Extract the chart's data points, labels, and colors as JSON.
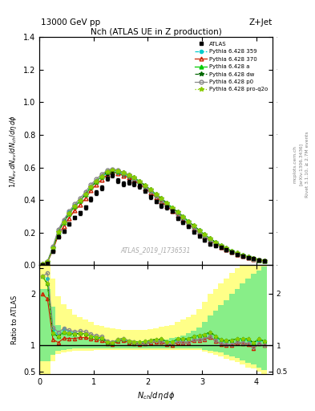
{
  "title_top_left": "13000 GeV pp",
  "title_top_right": "Z+Jet",
  "plot_title": "Nch (ATLAS UE in Z production)",
  "watermark": "ATLAS_2019_I1736531",
  "ylabel_main": "$1/N_{ev}\\,dN_{ev}/dN_{ch}/d\\eta\\,d\\phi$",
  "ylabel_ratio": "Ratio to ATLAS",
  "xlabel": "$N_{ch}/d\\eta\\,d\\phi$",
  "right_label1": "Rivet 3.1.10, ≥ 2.7M events",
  "right_label2": "[arXiv:1306.3436]",
  "right_label3": "mcplots.cern.ch",
  "ylim_main": [
    0,
    1.4
  ],
  "ylim_ratio": [
    0.45,
    2.55
  ],
  "xlim": [
    0,
    4.3
  ],
  "atlas_x": [
    0.05,
    0.15,
    0.25,
    0.35,
    0.45,
    0.55,
    0.65,
    0.75,
    0.85,
    0.95,
    1.05,
    1.15,
    1.25,
    1.35,
    1.45,
    1.55,
    1.65,
    1.75,
    1.85,
    1.95,
    2.05,
    2.15,
    2.25,
    2.35,
    2.45,
    2.55,
    2.65,
    2.75,
    2.85,
    2.95,
    3.05,
    3.15,
    3.25,
    3.35,
    3.45,
    3.55,
    3.65,
    3.75,
    3.85,
    3.95,
    4.05,
    4.15
  ],
  "atlas_y": [
    0.003,
    0.01,
    0.085,
    0.175,
    0.21,
    0.255,
    0.295,
    0.32,
    0.355,
    0.405,
    0.445,
    0.475,
    0.535,
    0.555,
    0.52,
    0.5,
    0.51,
    0.5,
    0.485,
    0.455,
    0.42,
    0.39,
    0.365,
    0.355,
    0.33,
    0.29,
    0.265,
    0.24,
    0.205,
    0.18,
    0.155,
    0.13,
    0.12,
    0.11,
    0.095,
    0.08,
    0.065,
    0.055,
    0.045,
    0.04,
    0.03,
    0.025
  ],
  "atlas_yerr": [
    0.001,
    0.002,
    0.008,
    0.01,
    0.01,
    0.01,
    0.01,
    0.012,
    0.012,
    0.014,
    0.014,
    0.015,
    0.017,
    0.017,
    0.015,
    0.014,
    0.015,
    0.014,
    0.014,
    0.012,
    0.012,
    0.011,
    0.011,
    0.011,
    0.01,
    0.01,
    0.01,
    0.01,
    0.009,
    0.009,
    0.008,
    0.008,
    0.008,
    0.007,
    0.007,
    0.007,
    0.006,
    0.006,
    0.005,
    0.005,
    0.004,
    0.004
  ],
  "p359_x": [
    0.05,
    0.15,
    0.25,
    0.35,
    0.45,
    0.55,
    0.65,
    0.75,
    0.85,
    0.95,
    1.05,
    1.15,
    1.25,
    1.35,
    1.45,
    1.55,
    1.65,
    1.75,
    1.85,
    1.95,
    2.05,
    2.15,
    2.25,
    2.35,
    2.45,
    2.55,
    2.65,
    2.75,
    2.85,
    2.95,
    3.05,
    3.15,
    3.25,
    3.35,
    3.45,
    3.55,
    3.65,
    3.75,
    3.85,
    3.95,
    4.05,
    4.15
  ],
  "p359_y": [
    0.007,
    0.023,
    0.11,
    0.21,
    0.275,
    0.325,
    0.365,
    0.395,
    0.435,
    0.48,
    0.51,
    0.54,
    0.565,
    0.575,
    0.57,
    0.555,
    0.545,
    0.525,
    0.505,
    0.48,
    0.455,
    0.43,
    0.4,
    0.375,
    0.348,
    0.322,
    0.296,
    0.268,
    0.24,
    0.213,
    0.186,
    0.162,
    0.14,
    0.12,
    0.103,
    0.088,
    0.073,
    0.061,
    0.05,
    0.041,
    0.033,
    0.027
  ],
  "p370_x": [
    0.05,
    0.15,
    0.25,
    0.35,
    0.45,
    0.55,
    0.65,
    0.75,
    0.85,
    0.95,
    1.05,
    1.15,
    1.25,
    1.35,
    1.45,
    1.55,
    1.65,
    1.75,
    1.85,
    1.95,
    2.05,
    2.15,
    2.25,
    2.35,
    2.45,
    2.55,
    2.65,
    2.75,
    2.85,
    2.95,
    3.05,
    3.15,
    3.25,
    3.35,
    3.45,
    3.55,
    3.65,
    3.75,
    3.85,
    3.95,
    4.05,
    4.15
  ],
  "p370_y": [
    0.006,
    0.019,
    0.095,
    0.185,
    0.24,
    0.29,
    0.335,
    0.37,
    0.41,
    0.46,
    0.495,
    0.525,
    0.555,
    0.57,
    0.565,
    0.55,
    0.538,
    0.52,
    0.497,
    0.472,
    0.444,
    0.418,
    0.39,
    0.362,
    0.334,
    0.307,
    0.279,
    0.252,
    0.225,
    0.199,
    0.174,
    0.151,
    0.131,
    0.113,
    0.096,
    0.081,
    0.068,
    0.057,
    0.046,
    0.038,
    0.031,
    0.025
  ],
  "pa_x": [
    0.05,
    0.15,
    0.25,
    0.35,
    0.45,
    0.55,
    0.65,
    0.75,
    0.85,
    0.95,
    1.05,
    1.15,
    1.25,
    1.35,
    1.45,
    1.55,
    1.65,
    1.75,
    1.85,
    1.95,
    2.05,
    2.15,
    2.25,
    2.35,
    2.45,
    2.55,
    2.65,
    2.75,
    2.85,
    2.95,
    3.05,
    3.15,
    3.25,
    3.35,
    3.45,
    3.55,
    3.65,
    3.75,
    3.85,
    3.95,
    4.05,
    4.15
  ],
  "pa_y": [
    0.007,
    0.022,
    0.105,
    0.205,
    0.265,
    0.315,
    0.36,
    0.395,
    0.435,
    0.48,
    0.515,
    0.545,
    0.575,
    0.585,
    0.58,
    0.568,
    0.555,
    0.538,
    0.515,
    0.49,
    0.463,
    0.437,
    0.41,
    0.382,
    0.354,
    0.327,
    0.299,
    0.27,
    0.242,
    0.215,
    0.188,
    0.164,
    0.142,
    0.122,
    0.104,
    0.088,
    0.074,
    0.062,
    0.051,
    0.042,
    0.034,
    0.027
  ],
  "pdw_x": [
    0.05,
    0.15,
    0.25,
    0.35,
    0.45,
    0.55,
    0.65,
    0.75,
    0.85,
    0.95,
    1.05,
    1.15,
    1.25,
    1.35,
    1.45,
    1.55,
    1.65,
    1.75,
    1.85,
    1.95,
    2.05,
    2.15,
    2.25,
    2.35,
    2.45,
    2.55,
    2.65,
    2.75,
    2.85,
    2.95,
    3.05,
    3.15,
    3.25,
    3.35,
    3.45,
    3.55,
    3.65,
    3.75,
    3.85,
    3.95,
    4.05,
    4.15
  ],
  "pdw_y": [
    0.007,
    0.022,
    0.105,
    0.205,
    0.265,
    0.315,
    0.36,
    0.395,
    0.435,
    0.48,
    0.515,
    0.545,
    0.575,
    0.585,
    0.58,
    0.568,
    0.555,
    0.538,
    0.515,
    0.49,
    0.463,
    0.437,
    0.41,
    0.382,
    0.354,
    0.327,
    0.299,
    0.27,
    0.242,
    0.215,
    0.188,
    0.164,
    0.142,
    0.122,
    0.104,
    0.088,
    0.074,
    0.062,
    0.051,
    0.042,
    0.034,
    0.027
  ],
  "pp0_x": [
    0.05,
    0.15,
    0.25,
    0.35,
    0.45,
    0.55,
    0.65,
    0.75,
    0.85,
    0.95,
    1.05,
    1.15,
    1.25,
    1.35,
    1.45,
    1.55,
    1.65,
    1.75,
    1.85,
    1.95,
    2.05,
    2.15,
    2.25,
    2.35,
    2.45,
    2.55,
    2.65,
    2.75,
    2.85,
    2.95,
    3.05,
    3.15,
    3.25,
    3.35,
    3.45,
    3.55,
    3.65,
    3.75,
    3.85,
    3.95,
    4.05,
    4.15
  ],
  "pp0_y": [
    0.007,
    0.024,
    0.115,
    0.22,
    0.28,
    0.33,
    0.375,
    0.41,
    0.45,
    0.495,
    0.528,
    0.558,
    0.582,
    0.59,
    0.583,
    0.568,
    0.552,
    0.532,
    0.508,
    0.482,
    0.453,
    0.426,
    0.397,
    0.369,
    0.34,
    0.313,
    0.284,
    0.256,
    0.228,
    0.201,
    0.176,
    0.153,
    0.132,
    0.114,
    0.097,
    0.082,
    0.069,
    0.058,
    0.047,
    0.039,
    0.031,
    0.025
  ],
  "pproq2o_x": [
    0.05,
    0.15,
    0.25,
    0.35,
    0.45,
    0.55,
    0.65,
    0.75,
    0.85,
    0.95,
    1.05,
    1.15,
    1.25,
    1.35,
    1.45,
    1.55,
    1.65,
    1.75,
    1.85,
    1.95,
    2.05,
    2.15,
    2.25,
    2.35,
    2.45,
    2.55,
    2.65,
    2.75,
    2.85,
    2.95,
    3.05,
    3.15,
    3.25,
    3.35,
    3.45,
    3.55,
    3.65,
    3.75,
    3.85,
    3.95,
    4.05,
    4.15
  ],
  "pproq2o_y": [
    0.007,
    0.022,
    0.105,
    0.205,
    0.265,
    0.315,
    0.36,
    0.395,
    0.435,
    0.48,
    0.515,
    0.545,
    0.575,
    0.585,
    0.58,
    0.568,
    0.555,
    0.538,
    0.515,
    0.49,
    0.463,
    0.437,
    0.41,
    0.382,
    0.354,
    0.327,
    0.299,
    0.27,
    0.242,
    0.215,
    0.188,
    0.164,
    0.142,
    0.122,
    0.104,
    0.088,
    0.074,
    0.062,
    0.051,
    0.042,
    0.034,
    0.027
  ],
  "color_359": "#00CCCC",
  "color_370": "#CC2200",
  "color_a": "#00CC00",
  "color_dw": "#006600",
  "color_p0": "#888888",
  "color_proq2o": "#88CC00",
  "band_yellow_x": [
    0.0,
    0.1,
    0.2,
    0.3,
    0.4,
    0.5,
    0.6,
    0.7,
    0.8,
    0.9,
    1.0,
    1.1,
    1.2,
    1.3,
    1.4,
    1.5,
    1.6,
    1.7,
    1.8,
    1.9,
    2.0,
    2.1,
    2.2,
    2.3,
    2.4,
    2.5,
    2.6,
    2.7,
    2.8,
    2.9,
    3.0,
    3.1,
    3.2,
    3.3,
    3.4,
    3.5,
    3.6,
    3.7,
    3.8,
    3.9,
    4.0,
    4.1
  ],
  "band_yellow_low": [
    0.45,
    0.45,
    0.7,
    0.84,
    0.87,
    0.88,
    0.9,
    0.9,
    0.9,
    0.9,
    0.91,
    0.91,
    0.92,
    0.92,
    0.91,
    0.91,
    0.91,
    0.91,
    0.91,
    0.91,
    0.91,
    0.91,
    0.91,
    0.91,
    0.91,
    0.91,
    0.91,
    0.91,
    0.91,
    0.91,
    0.88,
    0.85,
    0.82,
    0.79,
    0.75,
    0.72,
    0.68,
    0.63,
    0.58,
    0.55,
    0.5,
    0.45
  ],
  "band_yellow_high": [
    2.55,
    2.55,
    2.3,
    1.95,
    1.8,
    1.7,
    1.6,
    1.55,
    1.5,
    1.45,
    1.4,
    1.38,
    1.35,
    1.33,
    1.32,
    1.3,
    1.3,
    1.3,
    1.3,
    1.3,
    1.32,
    1.34,
    1.36,
    1.38,
    1.4,
    1.45,
    1.5,
    1.55,
    1.6,
    1.7,
    1.85,
    2.0,
    2.1,
    2.2,
    2.3,
    2.4,
    2.5,
    2.55,
    2.55,
    2.55,
    2.55,
    2.55
  ],
  "band_green_low": [
    0.7,
    0.7,
    0.82,
    0.9,
    0.92,
    0.93,
    0.94,
    0.94,
    0.94,
    0.94,
    0.95,
    0.95,
    0.95,
    0.95,
    0.95,
    0.95,
    0.95,
    0.95,
    0.95,
    0.95,
    0.95,
    0.95,
    0.95,
    0.95,
    0.95,
    0.95,
    0.95,
    0.95,
    0.95,
    0.95,
    0.92,
    0.9,
    0.88,
    0.86,
    0.82,
    0.79,
    0.76,
    0.72,
    0.67,
    0.63,
    0.58,
    0.52
  ],
  "band_green_high": [
    2.1,
    2.1,
    1.75,
    1.4,
    1.3,
    1.25,
    1.2,
    1.18,
    1.15,
    1.13,
    1.12,
    1.11,
    1.1,
    1.09,
    1.09,
    1.08,
    1.08,
    1.08,
    1.08,
    1.08,
    1.09,
    1.1,
    1.11,
    1.12,
    1.14,
    1.16,
    1.2,
    1.24,
    1.28,
    1.35,
    1.45,
    1.58,
    1.68,
    1.78,
    1.88,
    2.0,
    2.1,
    2.2,
    2.3,
    2.38,
    2.45,
    2.52
  ]
}
